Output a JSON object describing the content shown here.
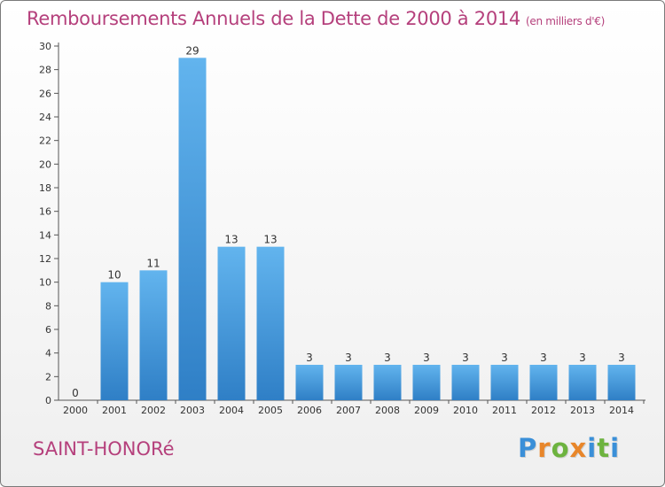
{
  "page": {
    "title": "Remboursements Annuels de la Dette de 2000 à 2014",
    "unit": "(en milliers d'€)",
    "place": "SAINT-HONORé"
  },
  "logo": {
    "text": "Proxiti",
    "letters": [
      {
        "ch": "P",
        "color": "#3a8fd8"
      },
      {
        "ch": "r",
        "color": "#e8862a"
      },
      {
        "ch": "o",
        "color": "#6db33f"
      },
      {
        "ch": "x",
        "color": "#e8862a"
      },
      {
        "ch": "i",
        "color": "#3a8fd8"
      },
      {
        "ch": "t",
        "color": "#6db33f"
      },
      {
        "ch": "i",
        "color": "#3a8fd8"
      }
    ]
  },
  "chart_data": {
    "type": "bar",
    "title": "Remboursements Annuels de la Dette de 2000 à 2014",
    "categories": [
      "2000",
      "2001",
      "2002",
      "2003",
      "2004",
      "2005",
      "2006",
      "2007",
      "2008",
      "2009",
      "2010",
      "2011",
      "2012",
      "2013",
      "2014"
    ],
    "values": [
      0,
      10,
      11,
      29,
      13,
      13,
      3,
      3,
      3,
      3,
      3,
      3,
      3,
      3,
      3
    ],
    "labels": [
      "0",
      "10",
      "11",
      "29",
      "13",
      "13",
      "3",
      "3",
      "3",
      "3",
      "3",
      "3",
      "3",
      "3",
      "3"
    ],
    "ylim": [
      0,
      30
    ],
    "yticks": [
      0,
      2,
      4,
      6,
      8,
      10,
      12,
      14,
      16,
      18,
      20,
      22,
      24,
      26,
      28,
      30
    ],
    "grid": false,
    "colors": {
      "bar_top": "#62b4ee",
      "bar_bottom": "#2f7fc6",
      "axis": "#555555",
      "text": "#333333"
    }
  }
}
